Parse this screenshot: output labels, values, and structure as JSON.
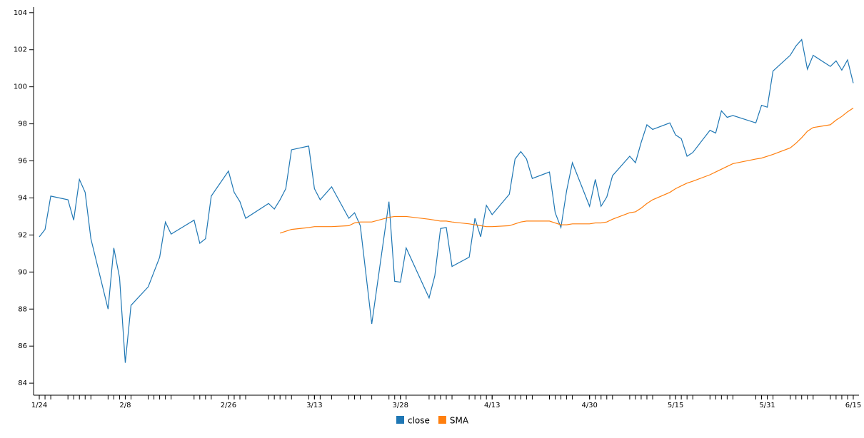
{
  "chart_data": {
    "type": "line",
    "x": [
      "1/24",
      "1/25",
      "1/26",
      "1/29",
      "1/30",
      "1/31",
      "2/1",
      "2/2",
      "2/5",
      "2/6",
      "2/7",
      "2/8",
      "2/9",
      "2/12",
      "2/13",
      "2/14",
      "2/15",
      "2/16",
      "2/20",
      "2/21",
      "2/22",
      "2/23",
      "2/26",
      "2/27",
      "2/28",
      "3/1",
      "3/5",
      "3/6",
      "3/7",
      "3/8",
      "3/9",
      "3/12",
      "3/13",
      "3/14",
      "3/16",
      "3/19",
      "3/20",
      "3/21",
      "3/23",
      "3/26",
      "3/27",
      "3/28",
      "3/29",
      "4/2",
      "4/3",
      "4/4",
      "4/5",
      "4/6",
      "4/9",
      "4/10",
      "4/11",
      "4/12",
      "4/13",
      "4/16",
      "4/17",
      "4/18",
      "4/19",
      "4/20",
      "4/23",
      "4/24",
      "4/25",
      "4/26",
      "4/27",
      "4/30",
      "5/1",
      "5/2",
      "5/3",
      "5/4",
      "5/7",
      "5/8",
      "5/9",
      "5/10",
      "5/11",
      "5/14",
      "5/15",
      "5/16",
      "5/17",
      "5/18",
      "5/21",
      "5/22",
      "5/23",
      "5/24",
      "5/25",
      "5/29",
      "5/30",
      "5/31",
      "6/1",
      "6/4",
      "6/5",
      "6/6",
      "6/7",
      "6/8",
      "6/11",
      "6/12",
      "6/13",
      "6/14",
      "6/15"
    ],
    "series": [
      {
        "name": "close",
        "color": "#1f77b4",
        "values": [
          91.9,
          92.3,
          94.1,
          93.9,
          92.8,
          95.0,
          94.3,
          91.8,
          88.0,
          91.3,
          89.7,
          85.1,
          88.2,
          89.2,
          90.0,
          90.8,
          92.7,
          92.05,
          92.8,
          91.55,
          91.8,
          94.1,
          95.45,
          94.3,
          93.8,
          92.9,
          93.7,
          93.4,
          93.9,
          94.5,
          96.6,
          96.8,
          94.5,
          93.9,
          94.6,
          92.9,
          93.2,
          92.5,
          87.2,
          93.8,
          89.5,
          89.45,
          91.3,
          88.6,
          89.8,
          92.35,
          92.4,
          90.3,
          90.8,
          92.9,
          91.9,
          93.6,
          93.1,
          94.2,
          96.1,
          96.5,
          96.1,
          95.05,
          95.4,
          93.2,
          92.4,
          94.4,
          95.9,
          93.55,
          95.0,
          93.55,
          94.05,
          95.2,
          96.25,
          95.9,
          97.0,
          97.95,
          97.7,
          98.05,
          97.4,
          97.2,
          96.25,
          96.45,
          97.65,
          97.5,
          98.7,
          98.35,
          98.45,
          98.05,
          99.0,
          98.9,
          100.85,
          101.7,
          102.2,
          102.55,
          100.95,
          101.7,
          101.1,
          101.4,
          100.9,
          101.45,
          100.2
        ]
      },
      {
        "name": "SMA",
        "color": "#ff7f0e",
        "values": [
          null,
          null,
          null,
          null,
          null,
          null,
          null,
          null,
          null,
          null,
          null,
          null,
          null,
          null,
          null,
          null,
          null,
          null,
          null,
          null,
          null,
          null,
          null,
          null,
          null,
          null,
          null,
          null,
          92.1,
          92.2,
          92.3,
          92.4,
          92.45,
          92.45,
          92.45,
          92.5,
          92.65,
          92.7,
          92.7,
          92.95,
          93.0,
          93.0,
          93.0,
          92.85,
          92.8,
          92.75,
          92.75,
          92.7,
          92.6,
          92.55,
          92.5,
          92.45,
          92.45,
          92.5,
          92.6,
          92.7,
          92.75,
          92.75,
          92.75,
          92.65,
          92.55,
          92.55,
          92.6,
          92.6,
          92.65,
          92.65,
          92.7,
          92.85,
          93.2,
          93.25,
          93.45,
          93.7,
          93.9,
          94.3,
          94.5,
          94.65,
          94.8,
          94.9,
          95.25,
          95.4,
          95.55,
          95.7,
          95.85,
          96.1,
          96.15,
          96.25,
          96.35,
          96.7,
          96.95,
          97.25,
          97.6,
          97.8,
          97.95,
          98.2,
          98.4,
          98.65,
          98.85
        ]
      }
    ],
    "xlim": [
      "1/23",
      "6/16"
    ],
    "xticks": [
      "1/24",
      "2/8",
      "2/26",
      "3/13",
      "3/28",
      "4/13",
      "4/30",
      "5/15",
      "5/31",
      "6/15"
    ],
    "ylim": [
      83.35,
      104.3
    ],
    "yticks": [
      84,
      86,
      88,
      90,
      92,
      94,
      96,
      98,
      100,
      102,
      104
    ]
  }
}
